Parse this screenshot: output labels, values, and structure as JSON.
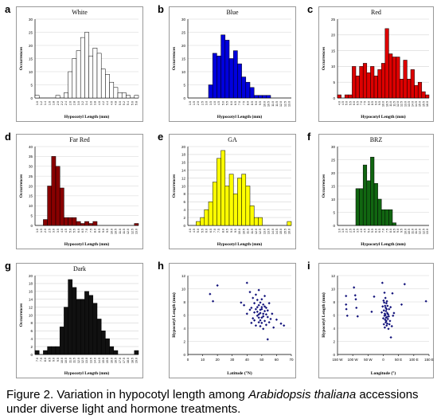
{
  "caption": {
    "prefix": "Figure 2.  Variation in hypocotyl length among ",
    "species": "Arabidopsis thaliana",
    "suffix": " accessions under diverse light and hormone treatments."
  },
  "chart_data": [
    {
      "id": "a",
      "type": "bar",
      "title": "White",
      "color": "#ffffff",
      "xlabel": "Hypocotyl Length (mm)",
      "ylabel": "Occurrences",
      "ylim": [
        0,
        30
      ],
      "yticks": [
        0,
        5,
        10,
        15,
        20,
        25,
        30
      ],
      "categories": [
        "1.0",
        "1.2",
        "1.4",
        "1.6",
        "1.8",
        "2.0",
        "2.2",
        "2.4",
        "2.6",
        "2.8",
        "3.0",
        "3.2",
        "3.4",
        "3.6",
        "3.8",
        "4.0",
        "4.2",
        "4.4",
        "4.6",
        "4.8",
        "5.0",
        "5.2",
        "5.4",
        "5.6",
        "5.8"
      ],
      "values": [
        1,
        0,
        0,
        0,
        0,
        1,
        0,
        2,
        10,
        15,
        18,
        23,
        25,
        16,
        19,
        17,
        11,
        9,
        6,
        4,
        2,
        2,
        1,
        0,
        1
      ]
    },
    {
      "id": "b",
      "type": "bar",
      "title": "Blue",
      "color": "#0000dd",
      "xlabel": "Hypocotyl Length (mm)",
      "ylabel": "Occurrences",
      "ylim": [
        0,
        30
      ],
      "yticks": [
        0,
        5,
        10,
        15,
        20,
        25,
        30
      ],
      "categories": [
        "1.0",
        "1.5",
        "2.0",
        "2.5",
        "3.0",
        "3.5",
        "4.0",
        "4.5",
        "5.0",
        "5.5",
        "6.0",
        "6.5",
        "7.0",
        "7.5",
        "8.0",
        "8.5",
        "9.0",
        "9.5",
        "10.0",
        "10.5",
        "11.0",
        "11.5",
        "12.0",
        "12.5",
        "13.0"
      ],
      "values": [
        0,
        0,
        0,
        0,
        0,
        5,
        17,
        16,
        24,
        22,
        15,
        18,
        13,
        8,
        6,
        4,
        1,
        1,
        1,
        1,
        0,
        0,
        0,
        0,
        0
      ]
    },
    {
      "id": "c",
      "type": "bar",
      "title": "Red",
      "color": "#dd0000",
      "xlabel": "Hypocotyl Length (mm)",
      "ylabel": "Occurrences",
      "ylim": [
        0,
        25
      ],
      "yticks": [
        0,
        5,
        10,
        15,
        20,
        25
      ],
      "categories": [
        "4.0",
        "4.5",
        "5.0",
        "5.5",
        "6.0",
        "6.5",
        "7.0",
        "7.5",
        "8.0",
        "8.5",
        "9.0",
        "9.5",
        "10.0",
        "10.5",
        "11.0",
        "11.5",
        "12.0",
        "12.5",
        "13.0",
        "13.5",
        "14.0",
        "14.5",
        "15.0",
        "15.5",
        "16.0"
      ],
      "values": [
        1,
        0,
        1,
        1,
        10,
        7,
        10,
        11,
        8,
        10,
        7,
        9,
        11,
        22,
        14,
        13,
        13,
        6,
        12,
        6,
        9,
        4,
        5,
        2,
        1
      ]
    },
    {
      "id": "d",
      "type": "bar",
      "title": "Far Red",
      "color": "#880000",
      "xlabel": "Hypocotyl Length (mm)",
      "ylabel": "Occurrences",
      "ylim": [
        0,
        40
      ],
      "yticks": [
        0,
        5,
        10,
        15,
        20,
        25,
        30,
        35,
        40
      ],
      "categories": [
        "1.0",
        "1.5",
        "2.0",
        "2.5",
        "3.0",
        "3.5",
        "4.0",
        "4.5",
        "5.0",
        "5.5",
        "6.0",
        "6.5",
        "7.0",
        "7.5",
        "8.0",
        "8.5",
        "9.0",
        "9.5",
        "10.0",
        "10.5",
        "11.0",
        "11.5",
        "12.0",
        "12.5",
        "13.0"
      ],
      "values": [
        0,
        0,
        3,
        20,
        35,
        30,
        19,
        4,
        4,
        4,
        2,
        1,
        2,
        1,
        2,
        0,
        0,
        0,
        0,
        0,
        0,
        0,
        0,
        0,
        1
      ]
    },
    {
      "id": "e",
      "type": "bar",
      "title": "GA",
      "color": "#ffff00",
      "xlabel": "Hypocotyl Length (mm)",
      "ylabel": "Occurrences",
      "ylim": [
        0,
        20
      ],
      "yticks": [
        0,
        2,
        4,
        6,
        8,
        10,
        12,
        14,
        16,
        18,
        20
      ],
      "categories": [
        "4.0",
        "4.5",
        "5.0",
        "5.5",
        "6.0",
        "6.5",
        "7.0",
        "7.5",
        "8.0",
        "8.5",
        "9.0",
        "9.5",
        "10.0",
        "10.5",
        "11.0",
        "11.5",
        "12.0",
        "12.5",
        "13.0",
        "13.5",
        "14.0",
        "14.5",
        "15.0",
        "15.5",
        "16.0"
      ],
      "values": [
        0,
        0,
        1,
        2,
        4,
        6,
        11,
        17,
        19,
        10,
        13,
        8,
        12,
        13,
        10,
        5,
        2,
        2,
        0,
        0,
        0,
        0,
        0,
        0,
        1
      ]
    },
    {
      "id": "f",
      "type": "bar",
      "title": "BRZ",
      "color": "#116611",
      "xlabel": "Hypocotyl Length (mm)",
      "ylabel": "Occurrences",
      "ylim": [
        0,
        30
      ],
      "yticks": [
        0,
        5,
        10,
        15,
        20,
        25,
        30
      ],
      "categories": [
        "1.0",
        "1.5",
        "2.0",
        "2.5",
        "3.0",
        "3.5",
        "4.0",
        "4.5",
        "5.0",
        "5.5",
        "6.0",
        "6.5",
        "7.0",
        "7.5",
        "8.0",
        "8.5",
        "9.0",
        "9.5",
        "10.0",
        "10.5",
        "11.0",
        "11.5",
        "12.0",
        "12.5",
        "13.0"
      ],
      "values": [
        0,
        0,
        0,
        0,
        0,
        14,
        14,
        23,
        17,
        26,
        16,
        10,
        6,
        6,
        6,
        1,
        0,
        0,
        0,
        0,
        0,
        0,
        0,
        0,
        0
      ]
    },
    {
      "id": "g",
      "type": "bar",
      "title": "Dark",
      "color": "#111111",
      "xlabel": "Hypocotyl Length (mm)",
      "ylabel": "Occurrences",
      "ylim": [
        0,
        20
      ],
      "yticks": [
        0,
        2,
        4,
        6,
        8,
        10,
        12,
        14,
        16,
        18,
        20
      ],
      "categories": [
        "7.0",
        "7.5",
        "8.0",
        "8.5",
        "9.0",
        "9.5",
        "10.0",
        "10.5",
        "11.0",
        "11.5",
        "12.0",
        "12.5",
        "13.0",
        "13.5",
        "14.0",
        "14.5",
        "15.0",
        "15.5",
        "16.0",
        "16.5",
        "17.0",
        "17.5",
        "18.0",
        "18.5",
        "19.0"
      ],
      "values": [
        1,
        0,
        1,
        2,
        2,
        2,
        7,
        12,
        19,
        17,
        14,
        14,
        16,
        15,
        13,
        9,
        6,
        4,
        2,
        1,
        0,
        0,
        0,
        0,
        1
      ]
    },
    {
      "id": "h",
      "type": "scatter",
      "title": "",
      "xlabel": "Latitude (°N)",
      "ylabel": "Hypocotyl Length (mm)",
      "xlim": [
        0,
        70
      ],
      "ylim": [
        0,
        12
      ],
      "xticks": [
        0,
        10,
        20,
        30,
        40,
        50,
        60,
        70
      ],
      "yticks": [
        0,
        2,
        4,
        6,
        8,
        10,
        12
      ],
      "points": [
        [
          15,
          9.2
        ],
        [
          17,
          8.1
        ],
        [
          20,
          10.5
        ],
        [
          36,
          7.9
        ],
        [
          38,
          7.5
        ],
        [
          40,
          10.9
        ],
        [
          40,
          6.2
        ],
        [
          42,
          9.5
        ],
        [
          42,
          6.8
        ],
        [
          43,
          4.8
        ],
        [
          43,
          7.1
        ],
        [
          44,
          5.5
        ],
        [
          44,
          8.6
        ],
        [
          45,
          6.4
        ],
        [
          45,
          7.8
        ],
        [
          45,
          5.2
        ],
        [
          46,
          6.9
        ],
        [
          46,
          4.4
        ],
        [
          46,
          9.1
        ],
        [
          47,
          7.2
        ],
        [
          47,
          5.9
        ],
        [
          47,
          6.5
        ],
        [
          47,
          8.3
        ],
        [
          48,
          4.9
        ],
        [
          48,
          6.1
        ],
        [
          48,
          7.5
        ],
        [
          48,
          5.6
        ],
        [
          48,
          9.8
        ],
        [
          49,
          6.8
        ],
        [
          49,
          5.2
        ],
        [
          49,
          7.9
        ],
        [
          49,
          4.3
        ],
        [
          49,
          6.3
        ],
        [
          50,
          6.9
        ],
        [
          50,
          5.6
        ],
        [
          50,
          8.4
        ],
        [
          50,
          7.2
        ],
        [
          50,
          4.8
        ],
        [
          51,
          6.2
        ],
        [
          51,
          5.8
        ],
        [
          51,
          7.6
        ],
        [
          51,
          3.9
        ],
        [
          52,
          6.6
        ],
        [
          52,
          5.1
        ],
        [
          52,
          7.3
        ],
        [
          52,
          8.9
        ],
        [
          53,
          6.1
        ],
        [
          53,
          4.5
        ],
        [
          53,
          7.1
        ],
        [
          54,
          5.7
        ],
        [
          54,
          6.7
        ],
        [
          54,
          2.3
        ],
        [
          55,
          4.9
        ],
        [
          55,
          7.8
        ],
        [
          56,
          5.4
        ],
        [
          57,
          6.2
        ],
        [
          58,
          4.1
        ],
        [
          60,
          5.3
        ],
        [
          63,
          4.7
        ],
        [
          65,
          4.4
        ]
      ]
    },
    {
      "id": "i",
      "type": "scatter",
      "title": "",
      "xlabel": "Longitude (°)",
      "ylabel": "Hypocotyl Length (mm)",
      "xlim": [
        -150,
        150
      ],
      "ylim": [
        0,
        12
      ],
      "xticks": [
        -150,
        -100,
        -50,
        0,
        50,
        100,
        150
      ],
      "xticklabels": [
        "150 W",
        "100 W",
        "50 W",
        "0",
        "50 E",
        "100 E",
        "150 E"
      ],
      "yticks": [
        0,
        2,
        4,
        6,
        8,
        10,
        12
      ],
      "points": [
        [
          -122,
          8.9
        ],
        [
          -122,
          7.6
        ],
        [
          -121,
          6.9
        ],
        [
          -118,
          5.9
        ],
        [
          -96,
          10.2
        ],
        [
          -92,
          9.0
        ],
        [
          -90,
          8.4
        ],
        [
          -88,
          7.1
        ],
        [
          -84,
          5.8
        ],
        [
          -38,
          6.5
        ],
        [
          -30,
          8.8
        ],
        [
          -5,
          6.4
        ],
        [
          -3,
          10.9
        ],
        [
          -2,
          7.3
        ],
        [
          0,
          5.5
        ],
        [
          1,
          8.2
        ],
        [
          2,
          6.7
        ],
        [
          2,
          4.6
        ],
        [
          3,
          7.9
        ],
        [
          4,
          5.9
        ],
        [
          4,
          9.4
        ],
        [
          5,
          6.2
        ],
        [
          5,
          4.1
        ],
        [
          6,
          7.4
        ],
        [
          6,
          5.3
        ],
        [
          7,
          8.6
        ],
        [
          7,
          6.0
        ],
        [
          8,
          4.9
        ],
        [
          8,
          7.1
        ],
        [
          9,
          5.6
        ],
        [
          9,
          6.6
        ],
        [
          10,
          7.8
        ],
        [
          10,
          5.1
        ],
        [
          11,
          4.4
        ],
        [
          11,
          6.9
        ],
        [
          12,
          5.7
        ],
        [
          12,
          8.1
        ],
        [
          13,
          6.3
        ],
        [
          13,
          4.7
        ],
        [
          14,
          7.4
        ],
        [
          15,
          5.4
        ],
        [
          16,
          6.1
        ],
        [
          17,
          3.9
        ],
        [
          18,
          5.8
        ],
        [
          19,
          6.9
        ],
        [
          20,
          4.6
        ],
        [
          22,
          5.1
        ],
        [
          24,
          7.2
        ],
        [
          25,
          2.6
        ],
        [
          28,
          4.3
        ],
        [
          30,
          9.3
        ],
        [
          32,
          5.9
        ],
        [
          35,
          6.3
        ],
        [
          60,
          7.6
        ],
        [
          70,
          10.7
        ],
        [
          140,
          8.1
        ]
      ]
    }
  ]
}
